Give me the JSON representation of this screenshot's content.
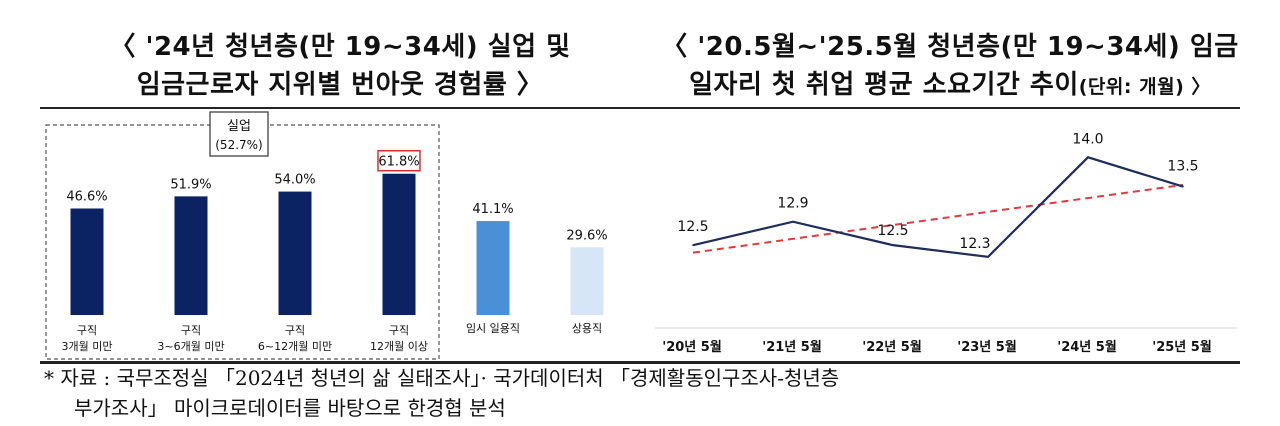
{
  "titles": {
    "left_line1": "〈 '24년 청년층(만 19~34세) 실업 및",
    "left_line2": "임금근로자 지위별 번아웃 경험률 〉",
    "right_line1": "〈 '20.5월~'25.5월 청년층(만 19~34세) 임금",
    "right_line2_main": "일자리 첫 취업 평균 소요기간 추이",
    "right_line2_unit": "(단위: 개월) 〉"
  },
  "source": {
    "line1": "* 자료 : 국무조정실 「2024년 청년의 삶 실태조사」· 국가데이터처 「경제활동인구조사-청년층",
    "line2": "부가조사」 마이크로데이터를 바탕으로 한경협 분석"
  },
  "colors": {
    "dark_bar": "#0b2362",
    "medium_bar": "#4a90d9",
    "light_bar": "#d6e6f7",
    "line": "#1f2d5c",
    "trend": "#e0393e",
    "highlight_box": "#d9302c"
  },
  "chart_data": [
    {
      "type": "bar",
      "group_label": "실업",
      "group_value_label": "(52.7%)",
      "ylim": [
        0,
        70
      ],
      "categories": [
        {
          "line1": "구직",
          "line2": "3개월 미만"
        },
        {
          "line1": "구직",
          "line2": "3~6개월 미만"
        },
        {
          "line1": "구직",
          "line2": "6~12개월 미만"
        },
        {
          "line1": "구직",
          "line2": "12개월 이상"
        },
        {
          "line1": "",
          "line2": "임시 일용직"
        },
        {
          "line1": "",
          "line2": "상용직"
        }
      ],
      "values": [
        46.6,
        51.9,
        54.0,
        61.8,
        41.1,
        29.6
      ],
      "value_labels": [
        "46.6%",
        "51.9%",
        "54.0%",
        "61.8%",
        "41.1%",
        "29.6%"
      ],
      "highlighted_index": 3
    },
    {
      "type": "line",
      "x": [
        "'20년 5월",
        "'21년 5월",
        "'22년 5월",
        "'23년 5월",
        "'24년 5월",
        "'25년 5월"
      ],
      "values": [
        12.5,
        12.9,
        12.5,
        12.3,
        14.0,
        13.5
      ],
      "value_labels": [
        "12.5",
        "12.9",
        "12.5",
        "12.3",
        "14.0",
        "13.5"
      ],
      "trendline": "linear, dashed",
      "ylim": [
        11.0,
        14.5
      ]
    }
  ]
}
